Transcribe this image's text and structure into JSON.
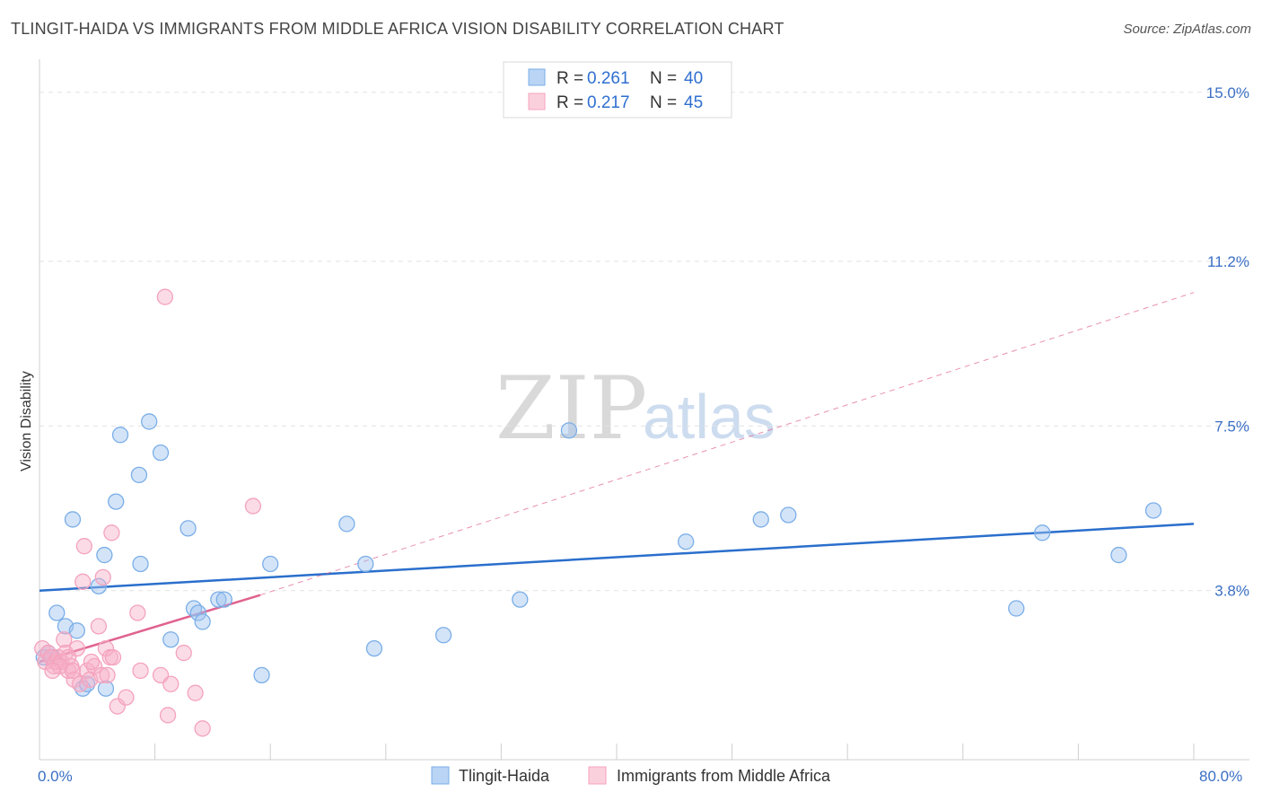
{
  "header": {
    "title": "TLINGIT-HAIDA VS IMMIGRANTS FROM MIDDLE AFRICA VISION DISABILITY CORRELATION CHART",
    "source": "Source: ZipAtlas.com"
  },
  "watermark": {
    "zip": "ZIP",
    "atlas": "atlas"
  },
  "chart_data": {
    "type": "scatter",
    "ylabel": "Vision Disability",
    "xlim": [
      0,
      80
    ],
    "ylim": [
      0,
      15.5
    ],
    "x_tick_labels": [
      "0.0%",
      "80.0%"
    ],
    "y_ticks": [
      {
        "value": 3.8,
        "label": "3.8%"
      },
      {
        "value": 7.5,
        "label": "7.5%"
      },
      {
        "value": 11.2,
        "label": "11.2%"
      },
      {
        "value": 15.0,
        "label": "15.0%"
      }
    ],
    "grid": "horizontal dashed",
    "legend_placement": "top-center",
    "series": [
      {
        "name": "Tlingit-Haida",
        "color": "#7aaee8",
        "line_color": "#2a6fcc",
        "r_label": "R =",
        "r_value": "0.261",
        "n_label": "N =",
        "n_value": "40",
        "trend": {
          "x0": 0,
          "y0": 3.8,
          "x1": 80,
          "y1": 5.3,
          "dashed_extension": false
        },
        "points": [
          [
            0.3,
            2.3
          ],
          [
            0.6,
            2.4
          ],
          [
            1.2,
            3.3
          ],
          [
            1.8,
            3.0
          ],
          [
            2.3,
            5.4
          ],
          [
            2.6,
            2.9
          ],
          [
            3.0,
            1.6
          ],
          [
            3.3,
            1.7
          ],
          [
            4.1,
            3.9
          ],
          [
            4.5,
            4.6
          ],
          [
            4.6,
            1.6
          ],
          [
            5.3,
            5.8
          ],
          [
            5.6,
            7.3
          ],
          [
            6.9,
            6.4
          ],
          [
            7.0,
            4.4
          ],
          [
            7.6,
            7.6
          ],
          [
            8.4,
            6.9
          ],
          [
            9.1,
            2.7
          ],
          [
            10.3,
            5.2
          ],
          [
            10.7,
            3.4
          ],
          [
            11.0,
            3.3
          ],
          [
            11.3,
            3.1
          ],
          [
            12.4,
            3.6
          ],
          [
            12.8,
            3.6
          ],
          [
            15.4,
            1.9
          ],
          [
            16.0,
            4.4
          ],
          [
            21.3,
            5.3
          ],
          [
            23.2,
            2.5
          ],
          [
            22.6,
            4.4
          ],
          [
            28.0,
            2.8
          ],
          [
            33.3,
            3.6
          ],
          [
            36.7,
            7.4
          ],
          [
            44.8,
            4.9
          ],
          [
            50.0,
            5.4
          ],
          [
            51.9,
            5.5
          ],
          [
            67.7,
            3.4
          ],
          [
            69.5,
            5.1
          ],
          [
            74.8,
            4.6
          ],
          [
            77.2,
            5.6
          ],
          [
            0.9,
            2.3
          ]
        ]
      },
      {
        "name": "Immigrants from Middle Africa",
        "color": "#f4a3bd",
        "line_color": "#e0628f",
        "r_label": "R =",
        "r_value": "0.217",
        "n_label": "N =",
        "n_value": "45",
        "trend": {
          "x0": 0,
          "y0": 2.2,
          "x1": 15.3,
          "y1": 3.7,
          "dash_x1": 80,
          "dash_y1": 10.5,
          "dashed_extension": true
        },
        "points": [
          [
            0.2,
            2.5
          ],
          [
            0.4,
            2.2
          ],
          [
            0.6,
            2.4
          ],
          [
            0.8,
            2.3
          ],
          [
            1.0,
            2.1
          ],
          [
            1.1,
            2.2
          ],
          [
            1.3,
            2.3
          ],
          [
            1.5,
            2.2
          ],
          [
            1.7,
            2.7
          ],
          [
            1.8,
            2.4
          ],
          [
            2.0,
            2.0
          ],
          [
            2.2,
            2.1
          ],
          [
            2.4,
            1.8
          ],
          [
            2.6,
            2.5
          ],
          [
            2.8,
            1.7
          ],
          [
            3.0,
            4.0
          ],
          [
            3.1,
            4.8
          ],
          [
            3.3,
            2.0
          ],
          [
            3.5,
            1.8
          ],
          [
            3.8,
            2.1
          ],
          [
            4.1,
            3.0
          ],
          [
            4.3,
            1.9
          ],
          [
            4.4,
            4.1
          ],
          [
            4.6,
            2.5
          ],
          [
            4.7,
            1.9
          ],
          [
            4.9,
            2.3
          ],
          [
            5.0,
            5.1
          ],
          [
            5.1,
            2.3
          ],
          [
            5.4,
            1.2
          ],
          [
            6.0,
            1.4
          ],
          [
            6.8,
            3.3
          ],
          [
            7.0,
            2.0
          ],
          [
            8.4,
            1.9
          ],
          [
            8.7,
            10.4
          ],
          [
            8.9,
            1.0
          ],
          [
            9.1,
            1.7
          ],
          [
            10.0,
            2.4
          ],
          [
            10.8,
            1.5
          ],
          [
            11.3,
            0.7
          ],
          [
            14.8,
            5.7
          ],
          [
            2.0,
            2.3
          ],
          [
            1.4,
            2.1
          ],
          [
            0.9,
            2.0
          ],
          [
            3.6,
            2.2
          ],
          [
            2.3,
            2.0
          ]
        ]
      }
    ]
  }
}
